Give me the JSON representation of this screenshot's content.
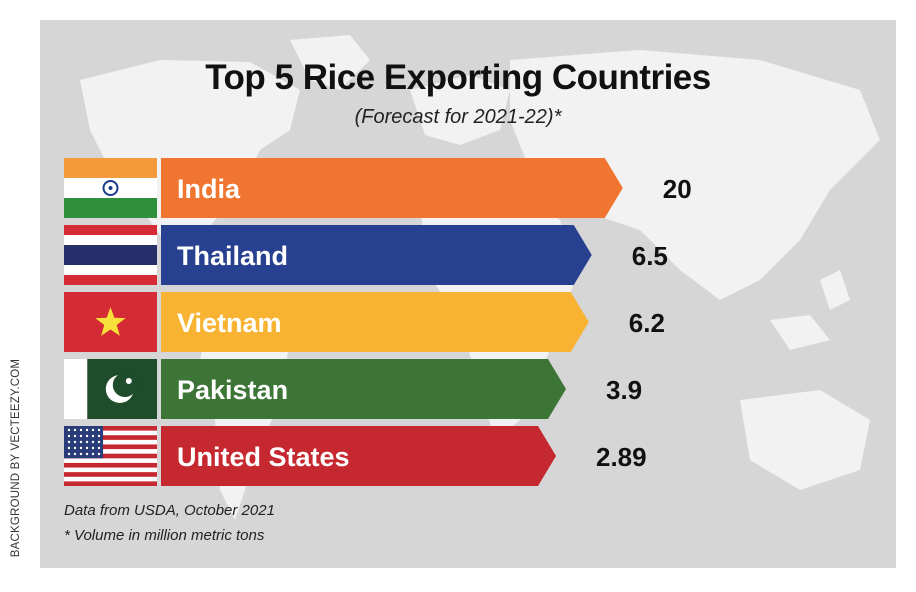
{
  "credit": "BACKGROUND BY VECTEEZY.COM",
  "chart_data": {
    "type": "bar",
    "title": "Top 5 Rice Exporting Countries",
    "subtitle": "(Forecast for 2021-22)*",
    "categories": [
      "India",
      "Thailand",
      "Vietnam",
      "Pakistan",
      "United States"
    ],
    "values": [
      20,
      6.5,
      6.2,
      3.9,
      2.89
    ],
    "value_labels": [
      "20",
      "6.5",
      "6.2",
      "3.9",
      "2.89"
    ],
    "colors": [
      "#f07530",
      "#27408f",
      "#f8b332",
      "#3c7536",
      "#c6282f"
    ],
    "flags": [
      "india-flag",
      "thailand-flag",
      "vietnam-flag",
      "pakistan-flag",
      "united-states-flag"
    ],
    "orientation": "horizontal"
  },
  "notes": {
    "source": "Data from USDA, October 2021",
    "units": "* Volume in million metric tons"
  }
}
